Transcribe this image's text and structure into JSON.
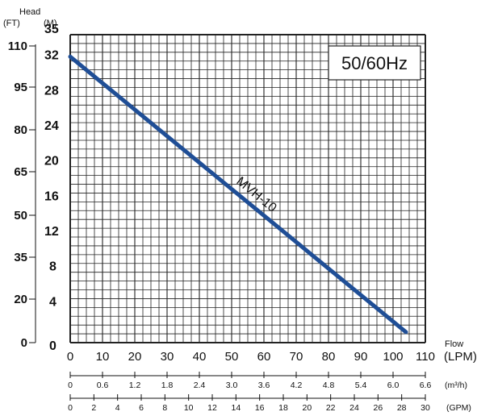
{
  "chart_data": {
    "type": "line",
    "series": [
      {
        "name": "MVH-10",
        "x": [
          0,
          104
        ],
        "y": [
          32.5,
          1.2
        ],
        "color": "#1f4e96"
      }
    ],
    "axes": {
      "y_m": {
        "label": "(M)",
        "range": [
          0,
          35
        ],
        "ticks": [
          "0",
          "4",
          "8",
          "12",
          "16",
          "20",
          "24",
          "28",
          "32",
          "35"
        ]
      },
      "y_ft": {
        "label": "(FT)",
        "range": [
          0,
          115
        ],
        "ticks": [
          "0",
          "20",
          "35",
          "50",
          "65",
          "80",
          "95",
          "110"
        ]
      },
      "x_lpm": {
        "label": "(LPM)",
        "range": [
          0,
          110
        ],
        "ticks": [
          "0",
          "10",
          "20",
          "30",
          "40",
          "50",
          "60",
          "70",
          "80",
          "90",
          "100",
          "110"
        ]
      },
      "x_m3h": {
        "label": "(m³/h)",
        "range": [
          0,
          6.6
        ],
        "ticks": [
          "0",
          "0.6",
          "1.2",
          "1.8",
          "2.4",
          "3.0",
          "3.6",
          "4.2",
          "4.8",
          "5.4",
          "6.0",
          "6.6"
        ]
      },
      "x_gpm": {
        "label": "(GPM)",
        "range": [
          0,
          30
        ],
        "ticks": [
          "0",
          "2",
          "4",
          "6",
          "8",
          "10",
          "12",
          "14",
          "16",
          "18",
          "20",
          "22",
          "24",
          "26",
          "28",
          "30"
        ]
      }
    },
    "head_title": "Head",
    "flow_title": "Flow",
    "frequency_label": "50/60Hz",
    "grid": true
  }
}
